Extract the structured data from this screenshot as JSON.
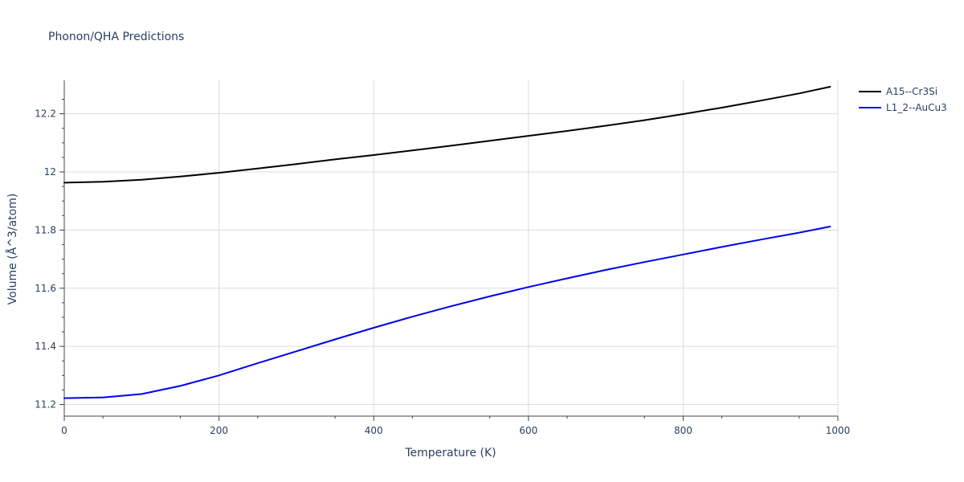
{
  "chart_data": {
    "type": "line",
    "title": "Phonon/QHA Predictions",
    "xlabel": "Temperature (K)",
    "ylabel": "Volume (Å^3/atom)",
    "xlim": [
      0,
      1000
    ],
    "ylim": [
      11.16,
      12.315
    ],
    "xticks": [
      0,
      200,
      400,
      600,
      800,
      1000
    ],
    "xtick_labels": [
      "0",
      "200",
      "400",
      "600",
      "800",
      "1000"
    ],
    "yticks": [
      11.2,
      11.4,
      11.6,
      11.8,
      12.0,
      12.2
    ],
    "ytick_labels": [
      "11.2",
      "11.4",
      "11.6",
      "11.8",
      "12",
      "12.2"
    ],
    "grid": true,
    "legend_position": "top-right",
    "series": [
      {
        "name": "A15--Cr3Si",
        "color": "#000000",
        "x": [
          0,
          50,
          100,
          150,
          200,
          250,
          300,
          350,
          400,
          450,
          500,
          550,
          600,
          650,
          700,
          750,
          800,
          850,
          900,
          950,
          990
        ],
        "y": [
          11.963,
          11.966,
          11.973,
          11.984,
          11.997,
          12.012,
          12.027,
          12.043,
          12.058,
          12.074,
          12.09,
          12.107,
          12.124,
          12.141,
          12.159,
          12.178,
          12.199,
          12.221,
          12.245,
          12.27,
          12.293
        ]
      },
      {
        "name": "L1_2--AuCu3",
        "color": "#0000ee",
        "x": [
          0,
          50,
          100,
          150,
          200,
          250,
          300,
          350,
          400,
          450,
          500,
          550,
          600,
          650,
          700,
          750,
          800,
          850,
          900,
          950,
          990
        ],
        "y": [
          11.222,
          11.224,
          11.236,
          11.264,
          11.3,
          11.342,
          11.383,
          11.424,
          11.464,
          11.502,
          11.538,
          11.572,
          11.604,
          11.634,
          11.663,
          11.69,
          11.716,
          11.742,
          11.767,
          11.791,
          11.812
        ]
      }
    ]
  }
}
